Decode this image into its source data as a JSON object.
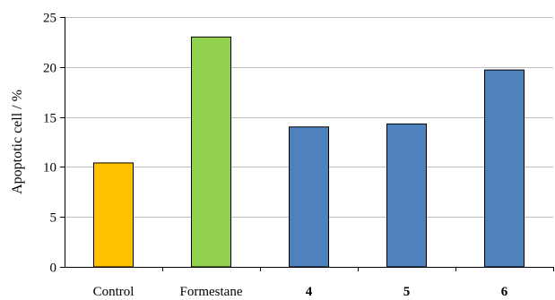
{
  "chart_data": {
    "type": "bar",
    "categories": [
      "Control",
      "Formestane",
      "4",
      "5",
      "6"
    ],
    "category_bold": [
      false,
      false,
      true,
      true,
      true
    ],
    "values": [
      10.4,
      23.0,
      14.0,
      14.3,
      19.7
    ],
    "bar_colors": [
      "#FFC000",
      "#92D050",
      "#4F81BD",
      "#4F81BD",
      "#4F81BD"
    ],
    "xlabel": "",
    "ylabel": "Apoptotic cell / %",
    "ylim": [
      0,
      25
    ],
    "yticks": [
      0,
      5,
      10,
      15,
      20,
      25
    ],
    "grid": true,
    "grid_color": "#BFBFBF"
  }
}
